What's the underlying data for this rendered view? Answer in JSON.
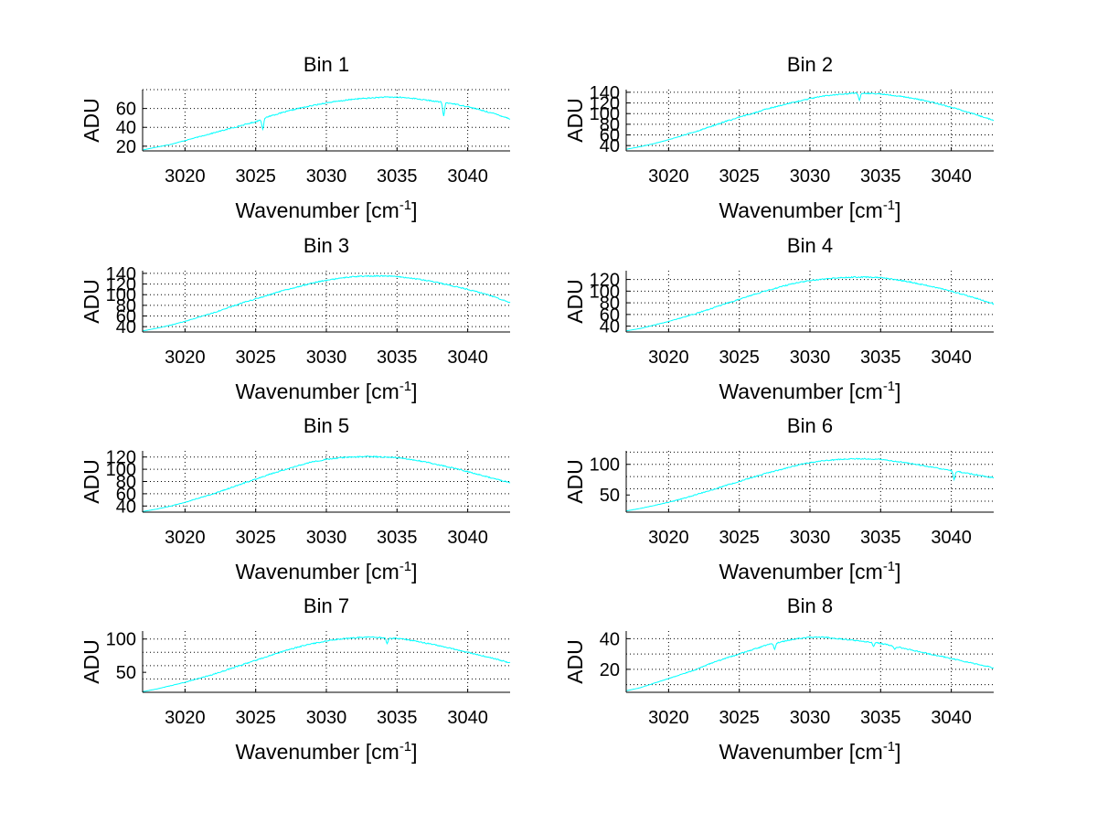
{
  "chart_data": [
    {
      "type": "line",
      "title": "Bin 1",
      "xlabel": "Wavenumber [cm",
      "xlabel_sup": "-1",
      "xlabel_end": "]",
      "ylabel": "ADU",
      "xlim": [
        3017,
        3043
      ],
      "ylim": [
        15,
        80
      ],
      "xticks": [
        3020,
        3025,
        3030,
        3035,
        3040
      ],
      "yticks": [
        20,
        40,
        60
      ],
      "ygrid": [
        20,
        40,
        60,
        80
      ],
      "grid": true,
      "color": "#00ffff",
      "series": [
        {
          "x": [
            3017,
            3018,
            3019,
            3020,
            3021,
            3022,
            3023,
            3024,
            3025,
            3026,
            3027,
            3028,
            3029,
            3030,
            3031,
            3032,
            3033,
            3034,
            3035,
            3036,
            3037,
            3038,
            3039,
            3040,
            3041,
            3042,
            3043
          ],
          "values": [
            16,
            19,
            22,
            26,
            30,
            34,
            38,
            42,
            46,
            52,
            56,
            60,
            63,
            66,
            68,
            70,
            71,
            72,
            72,
            71,
            69,
            67,
            65,
            62,
            58,
            54,
            49
          ],
          "dips": [
            [
              3025.5,
              38
            ],
            [
              3038.3,
              52
            ]
          ]
        }
      ]
    },
    {
      "type": "line",
      "title": "Bin 2",
      "xlabel": "Wavenumber [cm",
      "xlabel_sup": "-1",
      "xlabel_end": "]",
      "ylabel": "ADU",
      "xlim": [
        3017,
        3043
      ],
      "ylim": [
        30,
        145
      ],
      "xticks": [
        3020,
        3025,
        3030,
        3035,
        3040
      ],
      "yticks": [
        40,
        60,
        80,
        100,
        120,
        140
      ],
      "ygrid": [
        40,
        60,
        80,
        100,
        120,
        140
      ],
      "grid": true,
      "color": "#00ffff",
      "series": [
        {
          "x": [
            3017,
            3018,
            3019,
            3020,
            3021,
            3022,
            3023,
            3024,
            3025,
            3026,
            3027,
            3028,
            3029,
            3030,
            3031,
            3032,
            3033,
            3034,
            3035,
            3036,
            3037,
            3038,
            3039,
            3040,
            3041,
            3042,
            3043
          ],
          "values": [
            33,
            38,
            44,
            51,
            59,
            67,
            76,
            85,
            93,
            101,
            109,
            116,
            122,
            128,
            133,
            136,
            138,
            138,
            137,
            134,
            130,
            125,
            119,
            112,
            104,
            96,
            87
          ],
          "dips": [
            [
              3033.5,
              125
            ]
          ]
        }
      ]
    },
    {
      "type": "line",
      "title": "Bin 3",
      "xlabel": "Wavenumber [cm",
      "xlabel_sup": "-1",
      "xlabel_end": "]",
      "ylabel": "ADU",
      "xlim": [
        3017,
        3043
      ],
      "ylim": [
        30,
        145
      ],
      "xticks": [
        3020,
        3025,
        3030,
        3035,
        3040
      ],
      "yticks": [
        40,
        60,
        80,
        100,
        120,
        140
      ],
      "ygrid": [
        40,
        60,
        80,
        100,
        120,
        140
      ],
      "grid": true,
      "color": "#00ffff",
      "series": [
        {
          "x": [
            3017,
            3018,
            3019,
            3020,
            3021,
            3022,
            3023,
            3024,
            3025,
            3026,
            3027,
            3028,
            3029,
            3030,
            3031,
            3032,
            3033,
            3034,
            3035,
            3036,
            3037,
            3038,
            3039,
            3040,
            3041,
            3042,
            3043
          ],
          "values": [
            32,
            37,
            43,
            50,
            58,
            66,
            75,
            84,
            92,
            100,
            108,
            115,
            122,
            127,
            131,
            134,
            135,
            135,
            134,
            131,
            127,
            122,
            116,
            110,
            103,
            95,
            85
          ],
          "dips": []
        }
      ]
    },
    {
      "type": "line",
      "title": "Bin 4",
      "xlabel": "Wavenumber [cm",
      "xlabel_sup": "-1",
      "xlabel_end": "]",
      "ylabel": "ADU",
      "xlim": [
        3017,
        3043
      ],
      "ylim": [
        30,
        135
      ],
      "xticks": [
        3020,
        3025,
        3030,
        3035,
        3040
      ],
      "yticks": [
        40,
        60,
        80,
        100,
        120
      ],
      "ygrid": [
        40,
        60,
        80,
        100,
        120
      ],
      "grid": true,
      "color": "#00ffff",
      "series": [
        {
          "x": [
            3017,
            3018,
            3019,
            3020,
            3021,
            3022,
            3023,
            3024,
            3025,
            3026,
            3027,
            3028,
            3029,
            3030,
            3031,
            3032,
            3033,
            3034,
            3035,
            3036,
            3037,
            3038,
            3039,
            3040,
            3041,
            3042,
            3043
          ],
          "values": [
            32,
            36,
            42,
            48,
            55,
            62,
            70,
            78,
            86,
            94,
            101,
            108,
            114,
            118,
            121,
            123,
            124,
            124,
            123,
            120,
            116,
            111,
            106,
            100,
            93,
            86,
            78
          ],
          "dips": []
        }
      ]
    },
    {
      "type": "line",
      "title": "Bin 5",
      "xlabel": "Wavenumber [cm",
      "xlabel_sup": "-1",
      "xlabel_end": "]",
      "ylabel": "ADU",
      "xlim": [
        3017,
        3043
      ],
      "ylim": [
        30,
        130
      ],
      "xticks": [
        3020,
        3025,
        3030,
        3035,
        3040
      ],
      "yticks": [
        40,
        60,
        80,
        100,
        120
      ],
      "ygrid": [
        40,
        60,
        80,
        100,
        120
      ],
      "grid": true,
      "color": "#00ffff",
      "series": [
        {
          "x": [
            3017,
            3018,
            3019,
            3020,
            3021,
            3022,
            3023,
            3024,
            3025,
            3026,
            3027,
            3028,
            3029,
            3030,
            3031,
            3032,
            3033,
            3034,
            3035,
            3036,
            3037,
            3038,
            3039,
            3040,
            3041,
            3042,
            3043
          ],
          "values": [
            31,
            35,
            40,
            46,
            53,
            60,
            68,
            76,
            84,
            92,
            99,
            106,
            112,
            116,
            119,
            120,
            121,
            120,
            119,
            116,
            112,
            107,
            102,
            96,
            90,
            84,
            78
          ],
          "dips": []
        }
      ]
    },
    {
      "type": "line",
      "title": "Bin 6",
      "xlabel": "Wavenumber [cm",
      "xlabel_sup": "-1",
      "xlabel_end": "]",
      "ylabel": "ADU",
      "xlim": [
        3017,
        3043
      ],
      "ylim": [
        22,
        122
      ],
      "xticks": [
        3020,
        3025,
        3030,
        3035,
        3040
      ],
      "yticks": [
        50,
        100
      ],
      "ygrid": [
        40,
        60,
        80,
        100,
        120
      ],
      "grid": true,
      "color": "#00ffff",
      "series": [
        {
          "x": [
            3017,
            3018,
            3019,
            3020,
            3021,
            3022,
            3023,
            3024,
            3025,
            3026,
            3027,
            3028,
            3029,
            3030,
            3031,
            3032,
            3033,
            3034,
            3035,
            3036,
            3037,
            3038,
            3039,
            3040,
            3041,
            3042,
            3043
          ],
          "values": [
            24,
            28,
            33,
            38,
            44,
            51,
            58,
            65,
            72,
            79,
            86,
            92,
            98,
            103,
            106,
            108,
            109,
            109,
            108,
            105,
            102,
            98,
            94,
            90,
            86,
            82,
            78
          ],
          "dips": [
            [
              3040.2,
              75
            ]
          ]
        }
      ]
    },
    {
      "type": "line",
      "title": "Bin 7",
      "xlabel": "Wavenumber [cm",
      "xlabel_sup": "-1",
      "xlabel_end": "]",
      "ylabel": "ADU",
      "xlim": [
        3017,
        3043
      ],
      "ylim": [
        20,
        112
      ],
      "xticks": [
        3020,
        3025,
        3030,
        3035,
        3040
      ],
      "yticks": [
        50,
        100
      ],
      "ygrid": [
        40,
        60,
        80,
        100
      ],
      "grid": true,
      "color": "#00ffff",
      "series": [
        {
          "x": [
            3017,
            3018,
            3019,
            3020,
            3021,
            3022,
            3023,
            3024,
            3025,
            3026,
            3027,
            3028,
            3029,
            3030,
            3031,
            3032,
            3033,
            3034,
            3035,
            3036,
            3037,
            3038,
            3039,
            3040,
            3041,
            3042,
            3043
          ],
          "values": [
            21,
            25,
            30,
            35,
            41,
            47,
            54,
            61,
            68,
            75,
            82,
            88,
            93,
            97,
            100,
            102,
            103,
            102,
            101,
            98,
            94,
            90,
            85,
            80,
            75,
            70,
            64
          ],
          "dips": [
            [
              3034.3,
              93
            ]
          ]
        }
      ]
    },
    {
      "type": "line",
      "title": "Bin 8",
      "xlabel": "Wavenumber [cm",
      "xlabel_sup": "-1",
      "xlabel_end": "]",
      "ylabel": "ADU",
      "xlim": [
        3017,
        3043
      ],
      "ylim": [
        5,
        45
      ],
      "xticks": [
        3020,
        3025,
        3030,
        3035,
        3040
      ],
      "yticks": [
        20,
        40
      ],
      "ygrid": [
        10,
        20,
        30,
        40
      ],
      "grid": true,
      "color": "#00ffff",
      "series": [
        {
          "x": [
            3017,
            3018,
            3019,
            3020,
            3021,
            3022,
            3023,
            3024,
            3025,
            3026,
            3027,
            3028,
            3029,
            3030,
            3031,
            3032,
            3033,
            3034,
            3035,
            3036,
            3037,
            3038,
            3039,
            3040,
            3041,
            3042,
            3043
          ],
          "values": [
            6,
            8,
            11,
            14,
            17,
            20,
            24,
            27,
            30,
            33,
            36,
            38,
            40,
            41,
            41,
            40,
            39,
            38,
            37,
            35,
            33,
            31,
            29,
            27,
            25,
            23,
            21
          ],
          "dips": [
            [
              3027.5,
              33
            ],
            [
              3034.5,
              35
            ],
            [
              3036,
              33
            ]
          ]
        }
      ]
    }
  ]
}
